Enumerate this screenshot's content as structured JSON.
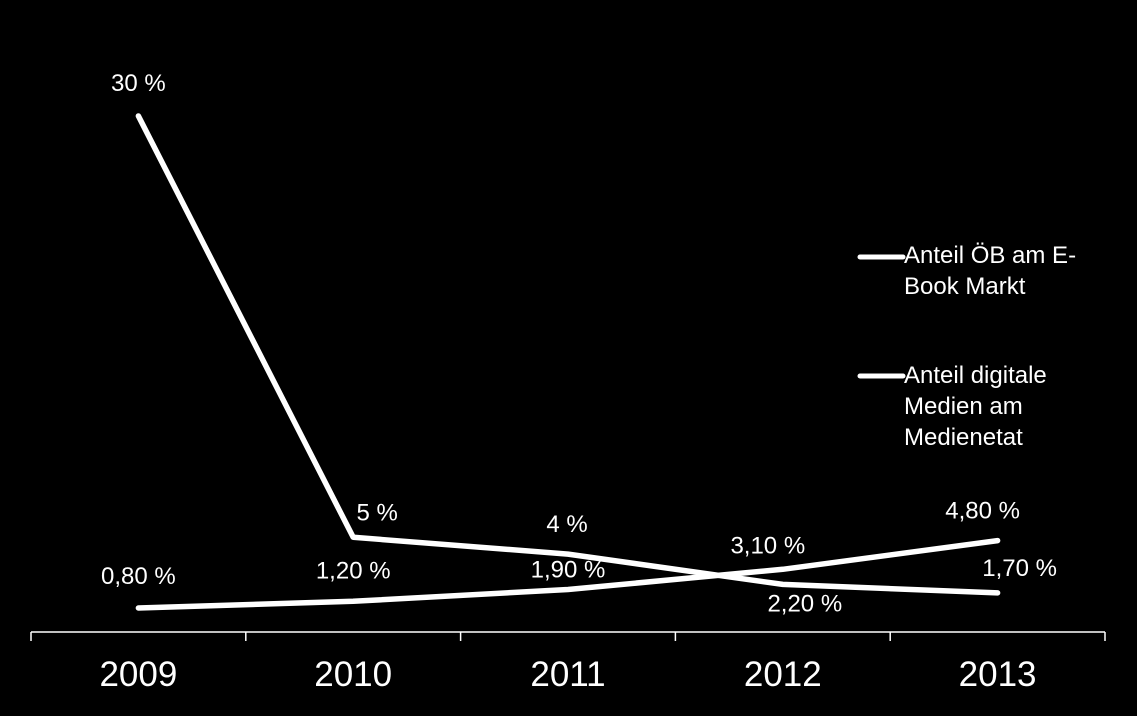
{
  "chart_data": {
    "type": "line",
    "categories": [
      "2009",
      "2010",
      "2011",
      "2012",
      "2013"
    ],
    "series": [
      {
        "name": "Anteil ÖB am E-Book Markt",
        "values": [
          30,
          5,
          4,
          2.2,
          1.7
        ],
        "labels": [
          "30 %",
          "5 %",
          "4 %",
          "2,20 %",
          "1,70 %"
        ],
        "color": "#ffffff"
      },
      {
        "name": "Anteil digitale Medien am Medienetat",
        "values": [
          0.8,
          1.2,
          1.9,
          3.1,
          4.8
        ],
        "labels": [
          "0,80 %",
          "1,20 %",
          "1,90 %",
          "3,10 %",
          "4,80 %"
        ],
        "color": "#ffffff"
      }
    ],
    "legend": {
      "position": "right",
      "entries": [
        "Anteil ÖB am E-Book Markt",
        "Anteil digitale Medien am Medienetat"
      ]
    },
    "grid": false,
    "background": "#000000"
  }
}
